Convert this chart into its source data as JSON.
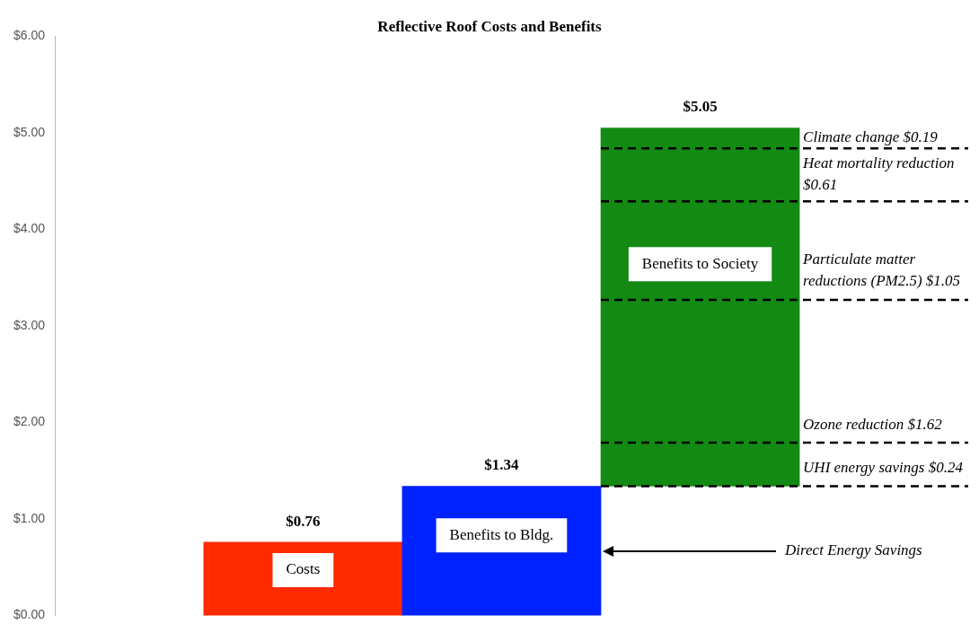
{
  "chart_data": {
    "type": "bar",
    "title": "Reflective Roof Costs and Benefits",
    "categories": [
      null,
      null,
      null
    ],
    "values": [
      0.76,
      1.34,
      3.71
    ],
    "base": [
      0,
      0,
      1.34
    ],
    "colors": [
      "#ff2a00",
      "#0022ff",
      "#138a13"
    ],
    "value_labels": [
      "$0.76",
      "$1.34",
      "$5.05"
    ],
    "ylim": [
      0,
      6
    ],
    "yticks": [
      {
        "value": 0,
        "label": "$0.00"
      },
      {
        "value": 1,
        "label": "$1.00"
      },
      {
        "value": 2,
        "label": "$2.00"
      },
      {
        "value": 3,
        "label": "$3.00"
      },
      {
        "value": 4,
        "label": "$4.00"
      },
      {
        "value": 5,
        "label": "$5.00"
      },
      {
        "value": 6,
        "label": "$6.00"
      }
    ],
    "grid": false,
    "legend": false,
    "tick_labels": "y",
    "ref_lines": [
      {
        "axis": "y",
        "value": 1.34,
        "label": "UHI energy savings $0.24",
        "color": "#000000",
        "line_style": "dashed"
      },
      {
        "axis": "y",
        "value": 1.79,
        "label": "Ozone reduction $1.62",
        "color": "#000000",
        "line_style": "dashed"
      },
      {
        "axis": "y",
        "value": 3.27,
        "label": "Particulate matter reductions (PM2.5) $1.05",
        "color": "#000000",
        "line_style": "dashed"
      },
      {
        "axis": "y",
        "value": 4.29,
        "label": "Heat mortality reduction $0.61",
        "color": "#000000",
        "line_style": "dashed"
      },
      {
        "axis": "y",
        "value": 4.84,
        "label": "Climate change $0.19",
        "color": "#000000",
        "line_style": "dashed"
      }
    ],
    "annotations": [
      "Costs",
      "Benefits to Bldg.",
      "Benefits to Society",
      "Direct Energy Savings"
    ]
  }
}
